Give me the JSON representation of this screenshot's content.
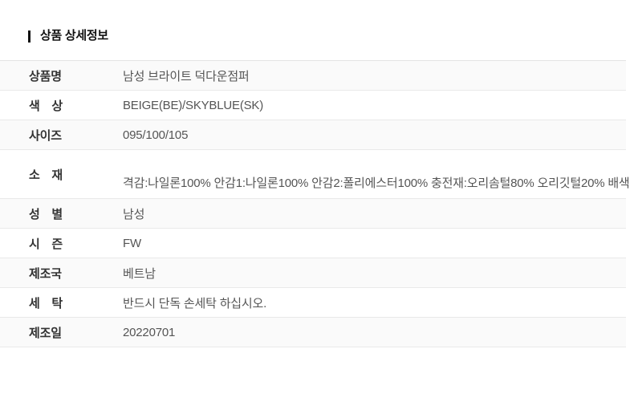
{
  "page": {
    "title": "상품 상세정보"
  },
  "table": {
    "rows": [
      {
        "label": "상품명",
        "value": "남성 브라이트 덕다운점퍼"
      },
      {
        "label": "색 상",
        "value": "BEIGE(BE)/SKYBLUE(SK)"
      },
      {
        "label": "사이즈",
        "value": "095/100/105"
      },
      {
        "label": "소 재",
        "value": "격감:나일론100% 안감1:나일론100% 안감2:폴리에스터100% 충전재:오리솜털80% 오리깃털20% 배색"
      },
      {
        "label": "성 별",
        "value": "남성"
      },
      {
        "label": "시 즌",
        "value": "FW"
      },
      {
        "label": "제조국",
        "value": "베트남"
      },
      {
        "label": "세 탁",
        "value": "반드시 단독 손세탁 하십시오."
      },
      {
        "label": "제조일",
        "value": "20220701"
      }
    ]
  }
}
